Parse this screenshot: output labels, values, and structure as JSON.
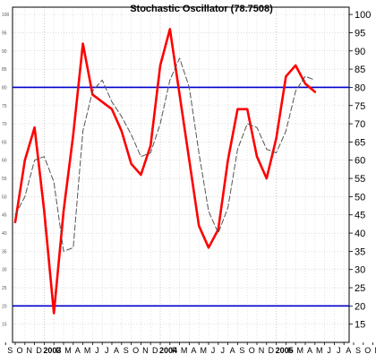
{
  "chart_data": {
    "type": "line",
    "title": "Stochastic Oscillator (78.7508)",
    "xlabel": "",
    "ylabel": "",
    "ylim": [
      10,
      102
    ],
    "x_tick_labels": [
      "S",
      "O",
      "N",
      "D",
      "2003",
      "F",
      "M",
      "A",
      "M",
      "J",
      "J",
      "A",
      "S",
      "O",
      "N",
      "D",
      "2004",
      "F",
      "M",
      "A",
      "M",
      "J",
      "J",
      "A",
      "S",
      "O",
      "N",
      "D",
      "2005",
      "F",
      "M",
      "A",
      "M",
      "J",
      "J",
      "A",
      "S",
      "O",
      "N",
      "D",
      "2006",
      "F",
      "M",
      "A"
    ],
    "year_labels": [
      "2003",
      "2004",
      "2005",
      "2006"
    ],
    "y_ticks": [
      15,
      20,
      25,
      30,
      35,
      40,
      45,
      50,
      55,
      60,
      65,
      70,
      75,
      80,
      85,
      90,
      95,
      100
    ],
    "reference_lines": [
      80,
      20
    ],
    "grid": true,
    "series": [
      {
        "role": "k",
        "color": "#ff0000",
        "points": [
          [
            0,
            43
          ],
          [
            1,
            60
          ],
          [
            2,
            69
          ],
          [
            3,
            46
          ],
          [
            4,
            18
          ],
          [
            5,
            46
          ],
          [
            6,
            67
          ],
          [
            7,
            92
          ],
          [
            8,
            78
          ],
          [
            9,
            76
          ],
          [
            10,
            74
          ],
          [
            11,
            68
          ],
          [
            12,
            59
          ],
          [
            13,
            56
          ],
          [
            14,
            64
          ],
          [
            15,
            86
          ],
          [
            16,
            96
          ],
          [
            17,
            78
          ],
          [
            18,
            60
          ],
          [
            19,
            42
          ],
          [
            20,
            36
          ],
          [
            21,
            41
          ],
          [
            22,
            60
          ],
          [
            23,
            74
          ],
          [
            24,
            74
          ],
          [
            25,
            61
          ],
          [
            26,
            55
          ],
          [
            27,
            66
          ],
          [
            28,
            83
          ],
          [
            29,
            86
          ],
          [
            30,
            81
          ],
          [
            31,
            78.75
          ]
        ]
      },
      {
        "role": "d",
        "color": "#555555",
        "points": [
          [
            0,
            45
          ],
          [
            1,
            50
          ],
          [
            2,
            60
          ],
          [
            3,
            61
          ],
          [
            4,
            54
          ],
          [
            5,
            35
          ],
          [
            6,
            36
          ],
          [
            7,
            68
          ],
          [
            8,
            79
          ],
          [
            9,
            82
          ],
          [
            10,
            76
          ],
          [
            11,
            72
          ],
          [
            12,
            67
          ],
          [
            13,
            61
          ],
          [
            14,
            62
          ],
          [
            15,
            70
          ],
          [
            16,
            82
          ],
          [
            17,
            88
          ],
          [
            18,
            80
          ],
          [
            19,
            62
          ],
          [
            20,
            46
          ],
          [
            21,
            40
          ],
          [
            22,
            47
          ],
          [
            23,
            63
          ],
          [
            24,
            70
          ],
          [
            25,
            69
          ],
          [
            26,
            63
          ],
          [
            27,
            62
          ],
          [
            28,
            68
          ],
          [
            29,
            79
          ],
          [
            30,
            83
          ],
          [
            31,
            82
          ]
        ]
      }
    ]
  }
}
